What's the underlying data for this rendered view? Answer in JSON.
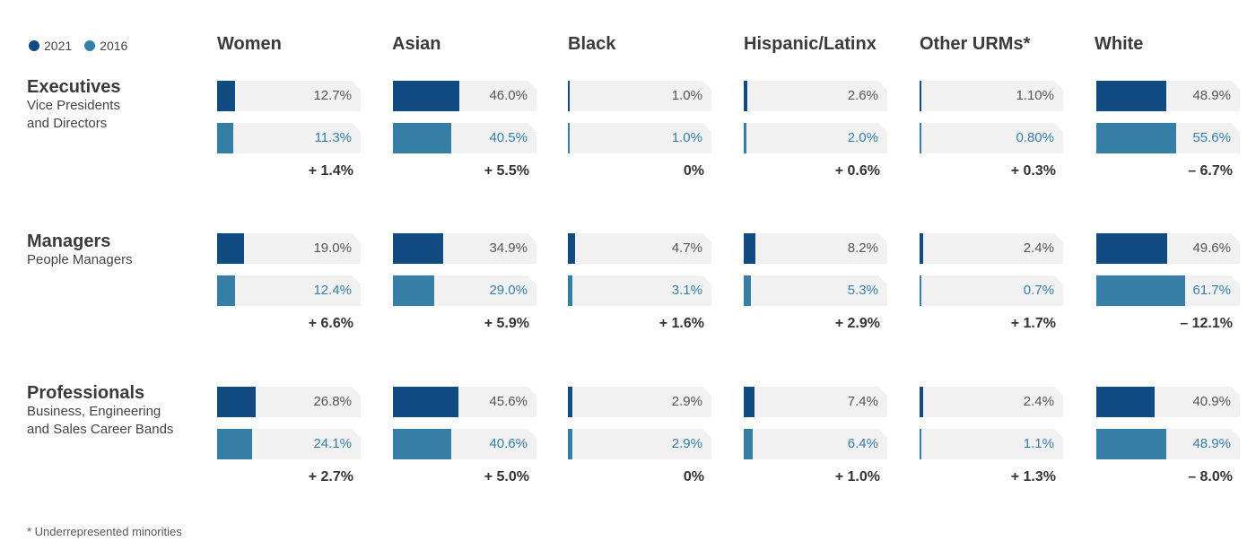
{
  "legend": [
    {
      "label": "2021",
      "color": "#124a82"
    },
    {
      "label": "2016",
      "color": "#357ea6"
    }
  ],
  "footnote": "* Underrepresented minorities",
  "chart_data": {
    "type": "bar",
    "title": "",
    "categories": [
      "Women",
      "Asian",
      "Black",
      "Hispanic/Latinx",
      "Other URMs*",
      "White"
    ],
    "rows": [
      {
        "title": "Executives",
        "subtitle": "Vice Presidents\nand Directors",
        "cells": [
          {
            "v2021": 12.7,
            "v2016": 11.3,
            "l2021": "12.7%",
            "l2016": "11.3%",
            "change": "+ 1.4%"
          },
          {
            "v2021": 46.0,
            "v2016": 40.5,
            "l2021": "46.0%",
            "l2016": "40.5%",
            "change": "+ 5.5%"
          },
          {
            "v2021": 1.0,
            "v2016": 1.0,
            "l2021": "1.0%",
            "l2016": "1.0%",
            "change": "0%"
          },
          {
            "v2021": 2.6,
            "v2016": 2.0,
            "l2021": "2.6%",
            "l2016": "2.0%",
            "change": "+ 0.6%"
          },
          {
            "v2021": 1.1,
            "v2016": 0.8,
            "l2021": "1.10%",
            "l2016": "0.80%",
            "change": "+ 0.3%"
          },
          {
            "v2021": 48.9,
            "v2016": 55.6,
            "l2021": "48.9%",
            "l2016": "55.6%",
            "change": "– 6.7%"
          }
        ]
      },
      {
        "title": "Managers",
        "subtitle": "People Managers",
        "cells": [
          {
            "v2021": 19.0,
            "v2016": 12.4,
            "l2021": "19.0%",
            "l2016": "12.4%",
            "change": "+ 6.6%"
          },
          {
            "v2021": 34.9,
            "v2016": 29.0,
            "l2021": "34.9%",
            "l2016": "29.0%",
            "change": "+ 5.9%"
          },
          {
            "v2021": 4.7,
            "v2016": 3.1,
            "l2021": "4.7%",
            "l2016": "3.1%",
            "change": "+ 1.6%"
          },
          {
            "v2021": 8.2,
            "v2016": 5.3,
            "l2021": "8.2%",
            "l2016": "5.3%",
            "change": "+ 2.9%"
          },
          {
            "v2021": 2.4,
            "v2016": 0.7,
            "l2021": "2.4%",
            "l2016": "0.7%",
            "change": "+ 1.7%"
          },
          {
            "v2021": 49.6,
            "v2016": 61.7,
            "l2021": "49.6%",
            "l2016": "61.7%",
            "change": "– 12.1%"
          }
        ]
      },
      {
        "title": "Professionals",
        "subtitle": "Business, Engineering\nand Sales Career Bands",
        "cells": [
          {
            "v2021": 26.8,
            "v2016": 24.1,
            "l2021": "26.8%",
            "l2016": "24.1%",
            "change": "+ 2.7%"
          },
          {
            "v2021": 45.6,
            "v2016": 40.6,
            "l2021": "45.6%",
            "l2016": "40.6%",
            "change": "+ 5.0%"
          },
          {
            "v2021": 2.9,
            "v2016": 2.9,
            "l2021": "2.9%",
            "l2016": "2.9%",
            "change": "0%"
          },
          {
            "v2021": 7.4,
            "v2016": 6.4,
            "l2021": "7.4%",
            "l2016": "6.4%",
            "change": "+ 1.0%"
          },
          {
            "v2021": 2.4,
            "v2016": 1.1,
            "l2021": "2.4%",
            "l2016": "1.1%",
            "change": "+ 1.3%"
          },
          {
            "v2021": 40.9,
            "v2016": 48.9,
            "l2021": "40.9%",
            "l2016": "48.9%",
            "change": "– 8.0%"
          }
        ]
      }
    ]
  }
}
